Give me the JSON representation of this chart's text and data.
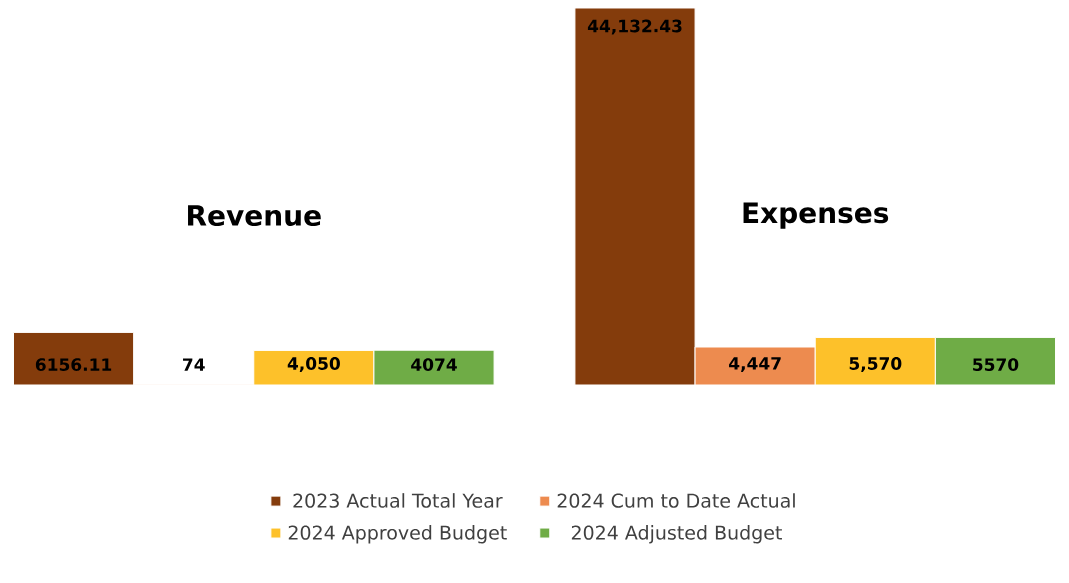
{
  "chart_data": {
    "type": "bar",
    "categories": [
      "Revenue",
      "Expenses"
    ],
    "series": [
      {
        "name": "2023 Actual Total Year",
        "color": "#843c0c",
        "values": [
          6156.11,
          44132.43
        ],
        "value_labels": [
          "6156.11",
          "44,132.43"
        ]
      },
      {
        "name": "2024 Cum to Date Actual",
        "color": "#ed8b4f",
        "values": [
          74,
          4447
        ],
        "value_labels": [
          "74",
          "4,447"
        ]
      },
      {
        "name": "2024 Approved Budget",
        "color": "#fdc12a",
        "values": [
          4050,
          5570
        ],
        "value_labels": [
          "4,050",
          "5,570"
        ]
      },
      {
        "name": "2024 Adjusted Budget",
        "color": "#6fac46",
        "values": [
          4074,
          5570
        ],
        "value_labels": [
          "4074",
          "5570"
        ]
      }
    ],
    "legend": "bottom"
  }
}
